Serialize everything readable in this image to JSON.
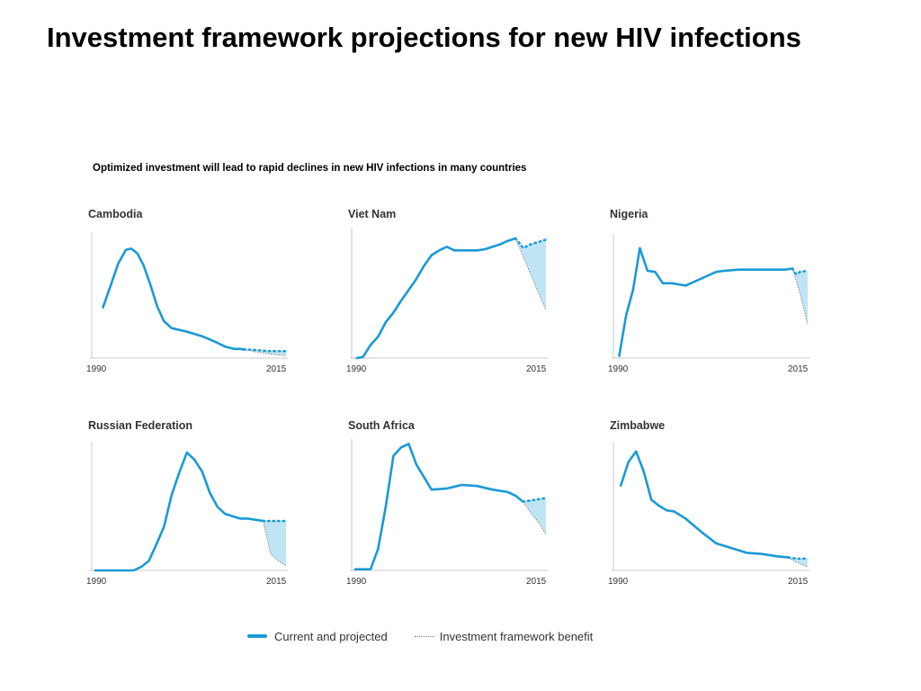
{
  "title": "Investment framework projections for new HIV infections",
  "subtitle": "Optimized investment will lead to rapid declines in new HIV infections in many countries",
  "colors": {
    "current": "#1a9ad6",
    "benefit_fill": "#bfe5f5",
    "benefit_line": "#888888",
    "axis": "#c8c8c8"
  },
  "legend": {
    "current_label": "Current and projected",
    "benefit_label": "Investment framework benefit"
  },
  "chart_data": [
    {
      "type": "line",
      "title": "Cambodia",
      "x_ticks": [
        "1990",
        "2015"
      ],
      "xlim": [
        1990,
        2015
      ],
      "ylim": [
        0,
        100
      ],
      "y_axis_labels": false,
      "current_x": [
        1991,
        1992,
        1993,
        1994,
        1994.7,
        1995.5,
        1996.3,
        1997.2,
        1998.1,
        1999,
        2000,
        2002,
        2004,
        2005.6,
        2007,
        2008.2,
        2009,
        2009.5
      ],
      "current_y": [
        44,
        63,
        82,
        94,
        95,
        91,
        81,
        64,
        45,
        32,
        26,
        23,
        19,
        14.5,
        10,
        8,
        8,
        7.5
      ],
      "projected_x": [
        2009.5,
        2011,
        2012,
        2013,
        2014,
        2015
      ],
      "projected_y": [
        7.5,
        7,
        6.5,
        6,
        6,
        6
      ],
      "benefit_x": [
        2009.5,
        2011,
        2013,
        2015
      ],
      "benefit_y": [
        7.5,
        5.5,
        3.5,
        2
      ]
    },
    {
      "type": "line",
      "title": "Viet Nam",
      "x_ticks": [
        "1990",
        "2015"
      ],
      "xlim": [
        1990,
        2015
      ],
      "ylim": [
        0,
        100
      ],
      "y_axis_labels": false,
      "current_x": [
        1990.2,
        1991,
        1992,
        1993,
        1994,
        1995,
        1996,
        1997,
        1998,
        1999,
        2000,
        2001,
        2002,
        2003,
        2004,
        2005,
        2006,
        2007,
        2008,
        2009,
        2010,
        2011
      ],
      "current_y": [
        0,
        1,
        11,
        18,
        30,
        38,
        48,
        57,
        66,
        77,
        86,
        90,
        93,
        90,
        90,
        90,
        90,
        91,
        93,
        95,
        98,
        100
      ],
      "projected_x": [
        2011,
        2011.3,
        2012,
        2013,
        2014,
        2015
      ],
      "projected_y": [
        100,
        98,
        92,
        95,
        97,
        99
      ],
      "benefit_x": [
        2011,
        2012,
        2013,
        2014,
        2015
      ],
      "benefit_y": [
        100,
        85,
        70,
        55,
        40
      ]
    },
    {
      "type": "line",
      "title": "Nigeria",
      "x_ticks": [
        "1990",
        "2015"
      ],
      "xlim": [
        1990,
        2015
      ],
      "ylim": [
        0,
        100
      ],
      "y_axis_labels": false,
      "current_x": [
        1990.3,
        1991.2,
        1992.1,
        1993,
        1994,
        1995,
        1996,
        1997.2,
        1999,
        2001,
        2002,
        2003,
        2004,
        2006,
        2008,
        2010,
        2012,
        2013
      ],
      "current_y": [
        2,
        38,
        60,
        97,
        77,
        76,
        66,
        66,
        64,
        70,
        73,
        76,
        77,
        78,
        78,
        78,
        78,
        79
      ],
      "projected_x": [
        2013,
        2013.5,
        2014,
        2015
      ],
      "projected_y": [
        79,
        74,
        76,
        77
      ],
      "benefit_x": [
        2013,
        2014,
        2015
      ],
      "benefit_y": [
        79,
        57,
        30
      ]
    },
    {
      "type": "line",
      "title": "Russian Federation",
      "x_ticks": [
        "1990",
        "2015"
      ],
      "xlim": [
        1990,
        2015
      ],
      "ylim": [
        0,
        100
      ],
      "y_axis_labels": false,
      "current_x": [
        1990,
        1992,
        1995,
        1996,
        1997,
        1998,
        1999,
        2000,
        2001,
        2002,
        2003,
        2004,
        2005,
        2006,
        2007,
        2008,
        2009,
        2010,
        2011,
        2012
      ],
      "current_y": [
        0,
        0,
        0,
        3,
        8,
        22,
        37,
        64,
        83,
        100,
        94,
        84,
        66,
        54,
        48,
        46,
        44,
        44,
        43,
        42
      ],
      "projected_x": [
        2012,
        2013,
        2014,
        2015
      ],
      "projected_y": [
        42,
        42,
        42,
        42
      ],
      "benefit_x": [
        2012,
        2013,
        2014,
        2015
      ],
      "benefit_y": [
        42,
        14,
        8,
        4
      ]
    },
    {
      "type": "line",
      "title": "South Africa",
      "x_ticks": [
        "1990",
        "2015"
      ],
      "xlim": [
        1990,
        2015
      ],
      "ylim": [
        0,
        100
      ],
      "y_axis_labels": false,
      "current_x": [
        1990,
        1992,
        1993,
        1994,
        1995,
        1996,
        1997,
        1998,
        2000,
        2002,
        2004,
        2006,
        2008,
        2010,
        2011,
        2012
      ],
      "current_y": [
        1,
        1,
        18,
        53,
        95,
        102,
        105,
        88,
        67,
        68,
        71,
        70,
        67,
        65,
        62,
        57
      ],
      "projected_x": [
        2012,
        2013,
        2014,
        2015
      ],
      "projected_y": [
        57,
        58,
        59,
        60
      ],
      "benefit_x": [
        2012,
        2013,
        2014,
        2015
      ],
      "benefit_y": [
        57,
        48,
        40,
        30
      ]
    },
    {
      "type": "line",
      "title": "Zimbabwe",
      "x_ticks": [
        "1990",
        "2015"
      ],
      "xlim": [
        1990,
        2015
      ],
      "ylim": [
        0,
        100
      ],
      "y_axis_labels": false,
      "current_x": [
        1990.5,
        1991.5,
        1992.5,
        1993.5,
        1994.5,
        1995.5,
        1996.5,
        1997.5,
        1999,
        2001,
        2003,
        2005,
        2007,
        2009,
        2011,
        2012.5
      ],
      "current_y": [
        72,
        92,
        101,
        84,
        60,
        55,
        51,
        50,
        44,
        33,
        23,
        19,
        15,
        14,
        12,
        11
      ],
      "projected_x": [
        2012.5,
        2013.5,
        2015
      ],
      "projected_y": [
        11,
        10,
        10
      ],
      "benefit_x": [
        2012.5,
        2013.5,
        2015
      ],
      "benefit_y": [
        11,
        7,
        3
      ]
    }
  ]
}
